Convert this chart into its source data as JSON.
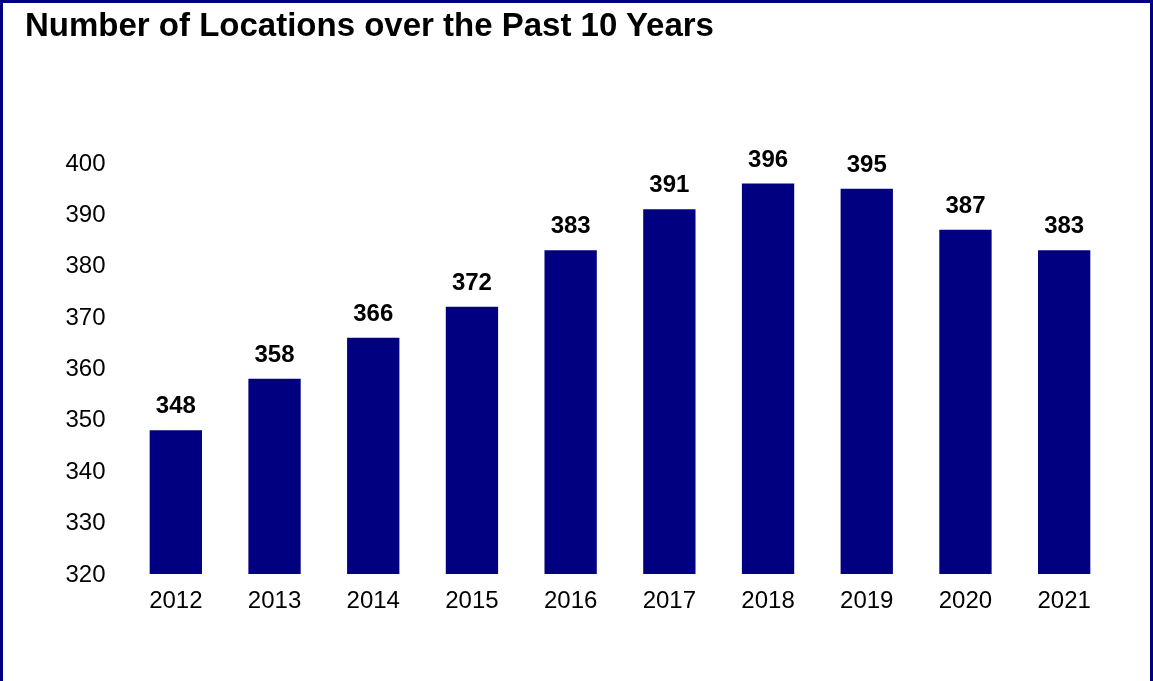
{
  "chart_data": {
    "type": "bar",
    "title": "Number of Locations over the Past 10 Years",
    "categories": [
      "2012",
      "2013",
      "2014",
      "2015",
      "2016",
      "2017",
      "2018",
      "2019",
      "2020",
      "2021"
    ],
    "values": [
      348,
      358,
      366,
      372,
      383,
      391,
      396,
      395,
      387,
      383
    ],
    "color": "#000080",
    "ylim": [
      320,
      400
    ],
    "yticks": [
      320,
      330,
      340,
      350,
      360,
      370,
      380,
      390,
      400
    ],
    "grid": false,
    "data_labels": true
  }
}
